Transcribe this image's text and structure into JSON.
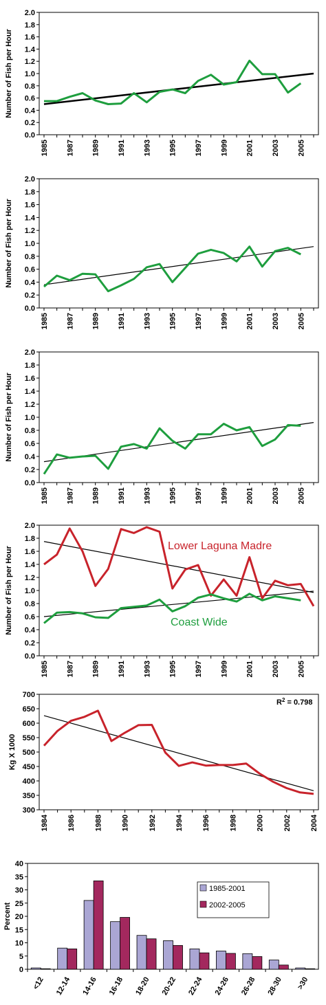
{
  "colors": {
    "green": "#1e9e3e",
    "red": "#c8232b",
    "black": "#000000",
    "bar1": "#aaa6d4",
    "bar2": "#a3285e"
  },
  "chart_data": [
    {
      "type": "line",
      "ylabel": "Number of Fish per Hour",
      "ylim": [
        0,
        2.0
      ],
      "yticks": [
        "0.0",
        "0.2",
        "0.4",
        "0.6",
        "0.8",
        "1.0",
        "1.2",
        "1.4",
        "1.6",
        "1.8",
        "2.0"
      ],
      "xticks": [
        "1985",
        "1987",
        "1989",
        "1991",
        "1993",
        "1995",
        "1997",
        "1999",
        "2001",
        "2003",
        "2005"
      ],
      "xlim": [
        1985,
        2006
      ],
      "series": [
        {
          "color": "#1e9e3e",
          "x": [
            1985,
            1986,
            1987,
            1988,
            1989,
            1990,
            1991,
            1992,
            1993,
            1994,
            1995,
            1996,
            1997,
            1998,
            1999,
            2000,
            2001,
            2002,
            2003,
            2004,
            2005
          ],
          "values": [
            0.55,
            0.55,
            0.62,
            0.68,
            0.56,
            0.5,
            0.51,
            0.68,
            0.53,
            0.7,
            0.74,
            0.68,
            0.88,
            0.98,
            0.82,
            0.86,
            1.21,
            0.99,
            0.99,
            0.69,
            0.84
          ]
        }
      ],
      "trend": {
        "x": [
          1985,
          2006
        ],
        "values": [
          0.5,
          1.0
        ],
        "width": 2.5
      }
    },
    {
      "type": "line",
      "ylabel": "Number of Fish per Hour",
      "ylim": [
        0,
        2.0
      ],
      "yticks": [
        "0.0",
        "0.2",
        "0.4",
        "0.6",
        "0.8",
        "1.0",
        "1.2",
        "1.4",
        "1.6",
        "1.8",
        "2.0"
      ],
      "xticks": [
        "1985",
        "1987",
        "1989",
        "1991",
        "1993",
        "1995",
        "1997",
        "1999",
        "2001",
        "2003",
        "2005"
      ],
      "xlim": [
        1985,
        2006
      ],
      "series": [
        {
          "color": "#1e9e3e",
          "x": [
            1985,
            1986,
            1987,
            1988,
            1989,
            1990,
            1991,
            1992,
            1993,
            1994,
            1995,
            1996,
            1997,
            1998,
            1999,
            2000,
            2001,
            2002,
            2003,
            2004,
            2005
          ],
          "values": [
            0.33,
            0.5,
            0.43,
            0.53,
            0.52,
            0.26,
            0.35,
            0.45,
            0.63,
            0.68,
            0.4,
            0.62,
            0.84,
            0.9,
            0.85,
            0.72,
            0.95,
            0.64,
            0.88,
            0.93,
            0.83
          ]
        }
      ],
      "trend": {
        "x": [
          1985,
          2006
        ],
        "values": [
          0.36,
          0.95
        ],
        "width": 1.2
      }
    },
    {
      "type": "line",
      "ylabel": "Number of Fish per Hour",
      "ylim": [
        0,
        2.0
      ],
      "yticks": [
        "0.0",
        "0.2",
        "0.4",
        "0.6",
        "0.8",
        "1.0",
        "1.2",
        "1.4",
        "1.6",
        "1.8",
        "2.0"
      ],
      "xticks": [
        "1985",
        "1987",
        "1989",
        "1991",
        "1993",
        "1995",
        "1997",
        "1999",
        "2001",
        "2003",
        "2005"
      ],
      "xlim": [
        1985,
        2006
      ],
      "series": [
        {
          "color": "#1e9e3e",
          "x": [
            1985,
            1986,
            1987,
            1988,
            1989,
            1990,
            1991,
            1992,
            1993,
            1994,
            1995,
            1996,
            1997,
            1998,
            1999,
            2000,
            2001,
            2002,
            2003,
            2004,
            2005
          ],
          "values": [
            0.13,
            0.43,
            0.38,
            0.4,
            0.41,
            0.21,
            0.55,
            0.59,
            0.52,
            0.83,
            0.64,
            0.52,
            0.74,
            0.74,
            0.9,
            0.8,
            0.85,
            0.56,
            0.66,
            0.88,
            0.87
          ]
        }
      ],
      "trend": {
        "x": [
          1985,
          2006
        ],
        "values": [
          0.32,
          0.92
        ],
        "width": 1.2
      }
    },
    {
      "type": "line",
      "ylabel": "Number of Fish per Hour",
      "ylim": [
        0,
        2.0
      ],
      "yticks": [
        "0.0",
        "0.2",
        "0.4",
        "0.6",
        "0.8",
        "1.0",
        "1.2",
        "1.4",
        "1.6",
        "1.8",
        "2.0"
      ],
      "xticks": [
        "1985",
        "1987",
        "1989",
        "1991",
        "1993",
        "1995",
        "1997",
        "1999",
        "2001",
        "2003",
        "2005"
      ],
      "xlim": [
        1985,
        2006
      ],
      "annotations": [
        "Lower Laguna Madre",
        "Coast Wide"
      ],
      "series": [
        {
          "color": "#c8232b",
          "x": [
            1985,
            1986,
            1987,
            1988,
            1989,
            1990,
            1991,
            1992,
            1993,
            1994,
            1995,
            1996,
            1997,
            1998,
            1999,
            2000,
            2001,
            2002,
            2003,
            2004,
            2005,
            2006
          ],
          "values": [
            1.4,
            1.55,
            1.95,
            1.6,
            1.07,
            1.33,
            1.94,
            1.88,
            1.97,
            1.9,
            1.03,
            1.32,
            1.39,
            0.92,
            1.17,
            0.92,
            1.51,
            0.88,
            1.15,
            1.08,
            1.1,
            0.76
          ]
        },
        {
          "color": "#1e9e3e",
          "x": [
            1985,
            1986,
            1987,
            1988,
            1989,
            1990,
            1991,
            1992,
            1993,
            1994,
            1995,
            1996,
            1997,
            1998,
            1999,
            2000,
            2001,
            2002,
            2003,
            2004,
            2005
          ],
          "values": [
            0.5,
            0.66,
            0.67,
            0.65,
            0.59,
            0.58,
            0.73,
            0.75,
            0.77,
            0.86,
            0.68,
            0.76,
            0.89,
            0.94,
            0.88,
            0.83,
            0.95,
            0.85,
            0.91,
            0.88,
            0.85
          ]
        }
      ],
      "trends": [
        {
          "x": [
            1985,
            2006
          ],
          "values": [
            1.75,
            0.97
          ]
        },
        {
          "x": [
            1985,
            2006
          ],
          "values": [
            0.6,
            0.99
          ]
        }
      ]
    },
    {
      "type": "line",
      "ylabel": "Kg X 1000",
      "ylim": [
        300,
        700
      ],
      "yticks": [
        "300",
        "350",
        "400",
        "450",
        "500",
        "550",
        "600",
        "650",
        "700"
      ],
      "xticks": [
        "1984",
        "1986",
        "1988",
        "1990",
        "1992",
        "1994",
        "1996",
        "1998",
        "2000",
        "2002",
        "2004"
      ],
      "xlim": [
        1984,
        2004
      ],
      "r2_label": "R",
      "r2_sup": "2",
      "r2_value": " = 0.798",
      "series": [
        {
          "color": "#c8232b",
          "x": [
            1984,
            1985,
            1986,
            1987,
            1988,
            1989,
            1990,
            1991,
            1992,
            1993,
            1994,
            1995,
            1996,
            1997,
            1998,
            1999,
            2000,
            2001,
            2002,
            2003,
            2004
          ],
          "values": [
            522,
            573,
            608,
            622,
            643,
            538,
            567,
            593,
            594,
            498,
            452,
            464,
            453,
            455,
            455,
            460,
            425,
            397,
            375,
            360,
            355
          ]
        }
      ],
      "trend": {
        "x": [
          1984,
          2004
        ],
        "values": [
          626,
          366
        ]
      }
    },
    {
      "type": "bar",
      "ylabel": "Percent",
      "ylim": [
        0,
        40
      ],
      "yticks": [
        "0",
        "5",
        "10",
        "15",
        "20",
        "25",
        "30",
        "35",
        "40"
      ],
      "categories": [
        "<12",
        "12-14",
        "14-16",
        "16-18",
        "18-20",
        "20-22",
        "22-24",
        "24-26",
        "26-28",
        "28-30",
        ">30"
      ],
      "legend": [
        "1985-2001",
        "2002-2005"
      ],
      "series": [
        {
          "name": "1985-2001",
          "color": "#aaa6d4",
          "values": [
            0.5,
            8,
            26,
            18,
            12.8,
            10.8,
            7.7,
            6.9,
            5.9,
            3.5,
            0.5
          ]
        },
        {
          "name": "2002-2005",
          "color": "#a3285e",
          "values": [
            0.2,
            7.7,
            33.4,
            19.6,
            11.5,
            9,
            6.2,
            6,
            4.8,
            1.6,
            0.2
          ]
        }
      ]
    }
  ]
}
